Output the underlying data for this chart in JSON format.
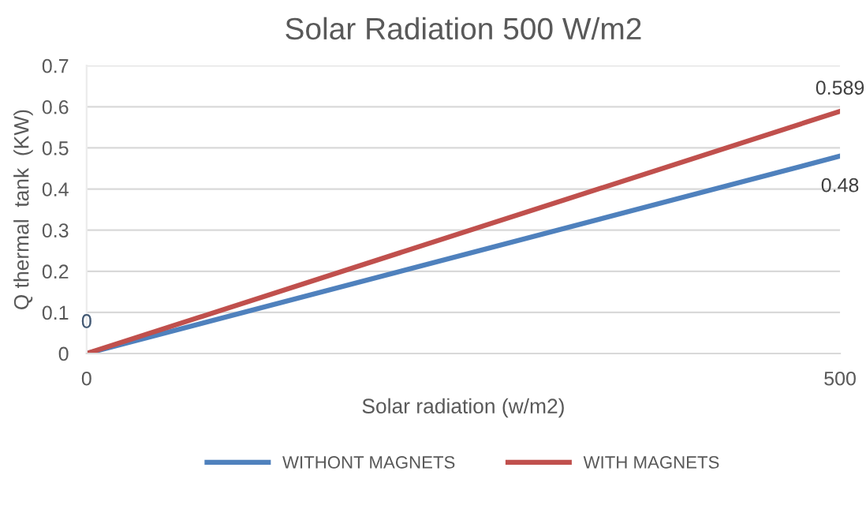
{
  "chart_data": {
    "type": "line",
    "title": "Solar Radiation 500 W/m2",
    "xlabel": "Solar radiation (w/m2)",
    "ylabel": "Q thermal  tank  (KW)",
    "x": [
      0,
      500
    ],
    "series": [
      {
        "name": "WITHONT MAGNETS",
        "color": "#4f81bd",
        "values": [
          0,
          0.48
        ],
        "value_labels": [
          "0",
          "0.48"
        ]
      },
      {
        "name": "WITH MAGNETS",
        "color": "#c0504d",
        "values": [
          0,
          0.589
        ],
        "value_labels": [
          "0",
          "0.589"
        ]
      }
    ],
    "xlim": [
      0,
      500
    ],
    "xticks": [
      0,
      500
    ],
    "ylim": [
      0,
      0.7
    ],
    "yticks": [
      0,
      0.1,
      0.2,
      0.3,
      0.4,
      0.5,
      0.6,
      0.7
    ],
    "grid": "y",
    "legend": "bottom",
    "marker": "none",
    "line_style": "solid"
  }
}
